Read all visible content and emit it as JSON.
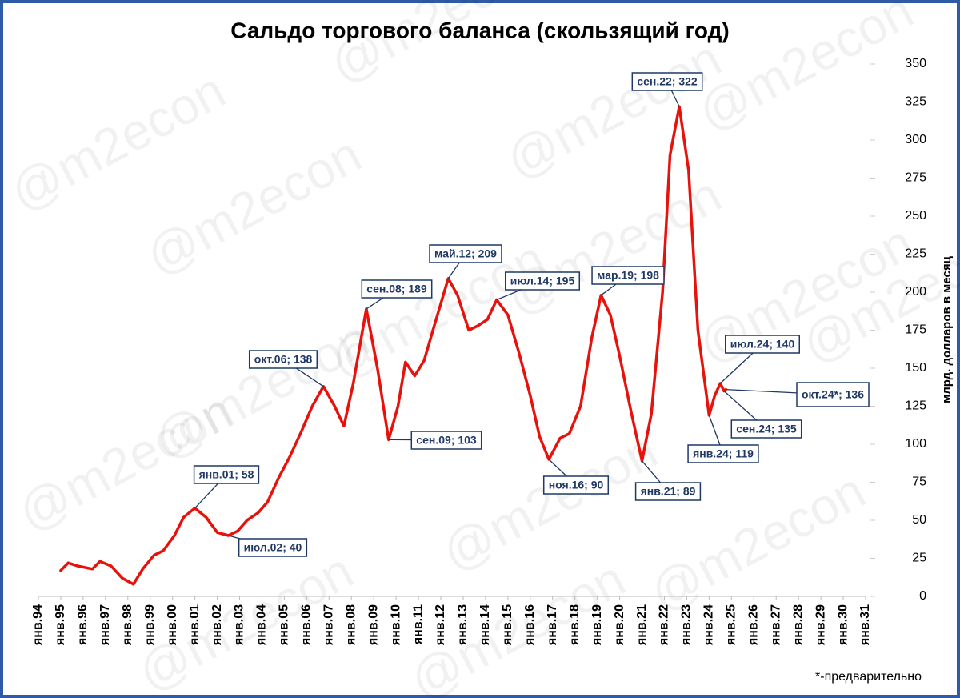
{
  "chart_data": {
    "type": "line",
    "title": "Сальдо торгового баланса (скользящий год)",
    "ylabel": "млрд. долларов в месяц",
    "note": "*-предварительно",
    "watermark": "@m2econ",
    "x": [
      "1995-01",
      "1995-05",
      "1995-10",
      "1996-06",
      "1996-10",
      "1997-04",
      "1997-10",
      "1998-04",
      "1998-09",
      "1999-03",
      "1999-08",
      "2000-02",
      "2000-07",
      "2001-01",
      "2001-07",
      "2002-01",
      "2002-07",
      "2002-12",
      "2003-05",
      "2003-11",
      "2004-04",
      "2004-10",
      "2005-04",
      "2005-10",
      "2006-04",
      "2006-10",
      "2007-04",
      "2007-09",
      "2008-02",
      "2008-09",
      "2009-03",
      "2009-09",
      "2010-02",
      "2010-06",
      "2010-11",
      "2011-04",
      "2011-10",
      "2012-05",
      "2012-10",
      "2013-04",
      "2013-09",
      "2014-02",
      "2014-07",
      "2015-01",
      "2015-07",
      "2016-01",
      "2016-06",
      "2016-11",
      "2017-05",
      "2017-10",
      "2018-04",
      "2018-10",
      "2019-03",
      "2019-08",
      "2020-01",
      "2020-07",
      "2021-01",
      "2021-06",
      "2021-12",
      "2022-04",
      "2022-09",
      "2023-02",
      "2023-07",
      "2024-01",
      "2024-04",
      "2024-07",
      "2024-09",
      "2024-10"
    ],
    "series": [
      {
        "name": "Сальдо торгового баланса",
        "color": "#e8120c",
        "values": [
          17,
          22,
          20,
          18,
          23,
          20,
          12,
          8,
          18,
          27,
          30,
          40,
          52,
          58,
          52,
          42,
          40,
          43,
          50,
          55,
          62,
          78,
          92,
          108,
          125,
          138,
          125,
          112,
          140,
          189,
          150,
          103,
          125,
          154,
          145,
          155,
          180,
          209,
          198,
          175,
          178,
          182,
          195,
          185,
          160,
          132,
          105,
          90,
          104,
          107,
          125,
          170,
          198,
          185,
          158,
          122,
          89,
          120,
          200,
          290,
          322,
          280,
          175,
          119,
          132,
          140,
          135,
          136
        ]
      }
    ],
    "annotations": [
      "янв.01; 58",
      "июл.02; 40",
      "окт.06; 138",
      "сен.08; 189",
      "сен.09; 103",
      "май.12; 209",
      "июл.14; 195",
      "ноя.16; 90",
      "мар.19; 198",
      "янв.21; 89",
      "сен.22; 322",
      "июл.24; 140",
      "окт.24*; 136",
      "сен.24; 135",
      "янв.24; 119"
    ],
    "xlim": [
      "1994-01",
      "2031-01"
    ],
    "xticks": [
      {
        "value": "1994-01",
        "label": "янв.94"
      },
      {
        "value": "1995-01",
        "label": "янв.95"
      },
      {
        "value": "1996-01",
        "label": "янв.96"
      },
      {
        "value": "1997-01",
        "label": "янв.97"
      },
      {
        "value": "1998-01",
        "label": "янв.98"
      },
      {
        "value": "1999-01",
        "label": "янв.99"
      },
      {
        "value": "2000-01",
        "label": "янв.00"
      },
      {
        "value": "2001-01",
        "label": "янв.01"
      },
      {
        "value": "2002-01",
        "label": "янв.02"
      },
      {
        "value": "2003-01",
        "label": "янв.03"
      },
      {
        "value": "2004-01",
        "label": "янв.04"
      },
      {
        "value": "2005-01",
        "label": "янв.05"
      },
      {
        "value": "2006-01",
        "label": "янв.06"
      },
      {
        "value": "2007-01",
        "label": "янв.07"
      },
      {
        "value": "2008-01",
        "label": "янв.08"
      },
      {
        "value": "2009-01",
        "label": "янв.09"
      },
      {
        "value": "2010-01",
        "label": "янв.10"
      },
      {
        "value": "2011-01",
        "label": "янв.11"
      },
      {
        "value": "2012-01",
        "label": "янв.12"
      },
      {
        "value": "2013-01",
        "label": "янв.13"
      },
      {
        "value": "2014-01",
        "label": "янв.14"
      },
      {
        "value": "2015-01",
        "label": "янв.15"
      },
      {
        "value": "2016-01",
        "label": "янв.16"
      },
      {
        "value": "2017-01",
        "label": "янв.17"
      },
      {
        "value": "2018-01",
        "label": "янв.18"
      },
      {
        "value": "2019-01",
        "label": "янв.19"
      },
      {
        "value": "2020-01",
        "label": "янв.20"
      },
      {
        "value": "2021-01",
        "label": "янв.21"
      },
      {
        "value": "2022-01",
        "label": "янв.22"
      },
      {
        "value": "2023-01",
        "label": "янв.23"
      },
      {
        "value": "2024-01",
        "label": "янв.24"
      },
      {
        "value": "2025-01",
        "label": "янв.25"
      },
      {
        "value": "2026-01",
        "label": "янв.26"
      },
      {
        "value": "2027-01",
        "label": "янв.27"
      },
      {
        "value": "2028-01",
        "label": "янв.28"
      },
      {
        "value": "2029-01",
        "label": "янв.29"
      },
      {
        "value": "2030-01",
        "label": "янв.30"
      },
      {
        "value": "2031-01",
        "label": "янв.31"
      }
    ],
    "ylim": [
      0,
      350
    ],
    "yticks": [
      0,
      25,
      50,
      75,
      100,
      125,
      150,
      175,
      200,
      225,
      250,
      275,
      300,
      325,
      350
    ],
    "grid": false
  }
}
